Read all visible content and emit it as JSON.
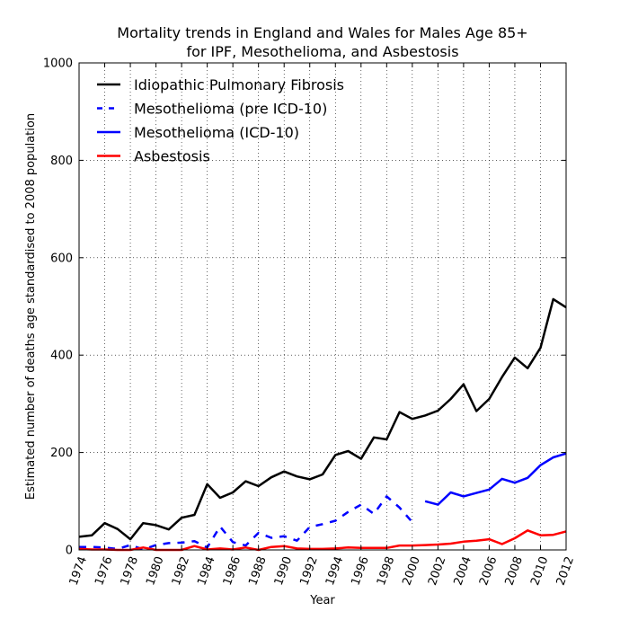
{
  "chart_data": {
    "type": "line",
    "title_line1": "Mortality trends in England and Wales for Males Age 85+",
    "title_line2": "for IPF, Mesothelioma, and Asbestosis",
    "xlabel": "Year",
    "ylabel": "Estimated number of deaths age standardised to 2008 population",
    "xlim": [
      1974,
      2012
    ],
    "ylim": [
      0,
      1000
    ],
    "xticks": [
      "1974",
      "1976",
      "1978",
      "1980",
      "1982",
      "1984",
      "1986",
      "1988",
      "1990",
      "1992",
      "1994",
      "1996",
      "1998",
      "2000",
      "2002",
      "2004",
      "2006",
      "2008",
      "2010",
      "2012"
    ],
    "yticks": [
      "0",
      "200",
      "400",
      "600",
      "800",
      "1000"
    ],
    "grid": true,
    "legend_position": "top-left",
    "series": [
      {
        "name": "Idiopathic Pulmonary Fibrosis",
        "color": "#000000",
        "style": "solid",
        "x": [
          1974,
          1975,
          1976,
          1977,
          1978,
          1979,
          1980,
          1981,
          1982,
          1983,
          1984,
          1985,
          1986,
          1987,
          1988,
          1989,
          1990,
          1991,
          1992,
          1993,
          1994,
          1995,
          1996,
          1997,
          1998,
          1999,
          2000,
          2001,
          2002,
          2003,
          2004,
          2005,
          2006,
          2007,
          2008,
          2009,
          2010,
          2011,
          2012
        ],
        "y": [
          27,
          30,
          55,
          43,
          22,
          55,
          51,
          42,
          66,
          72,
          135,
          107,
          118,
          141,
          131,
          149,
          161,
          151,
          145,
          155,
          195,
          203,
          187,
          231,
          227,
          283,
          269,
          276,
          286,
          310,
          340,
          285,
          310,
          355,
          395,
          373,
          415,
          515,
          498
        ]
      },
      {
        "name": "Mesothelioma (pre ICD-10)",
        "color": "#0000ff",
        "style": "dashed",
        "x": [
          1974,
          1975,
          1976,
          1977,
          1978,
          1979,
          1980,
          1981,
          1982,
          1983,
          1984,
          1985,
          1986,
          1987,
          1988,
          1989,
          1990,
          1991,
          1992,
          1993,
          1994,
          1995,
          1996,
          1997,
          1998,
          1999,
          2000
        ],
        "y": [
          6,
          6,
          5,
          2,
          10,
          1,
          10,
          14,
          15,
          18,
          5,
          48,
          16,
          9,
          35,
          25,
          28,
          19,
          47,
          53,
          60,
          78,
          93,
          74,
          110,
          87,
          57
        ]
      },
      {
        "name": "Mesothelioma (ICD-10)",
        "color": "#0000ff",
        "style": "solid",
        "x": [
          2001,
          2002,
          2003,
          2004,
          2005,
          2006,
          2007,
          2008,
          2009,
          2010,
          2011,
          2012
        ],
        "y": [
          100,
          93,
          118,
          110,
          117,
          124,
          146,
          138,
          148,
          174,
          190,
          198
        ]
      },
      {
        "name": "Asbestosis",
        "color": "#ff0000",
        "style": "solid",
        "x": [
          1974,
          1975,
          1976,
          1977,
          1978,
          1979,
          1980,
          1981,
          1982,
          1983,
          1984,
          1985,
          1986,
          1987,
          1988,
          1989,
          1990,
          1991,
          1992,
          1993,
          1994,
          1995,
          1996,
          1997,
          1998,
          1999,
          2000,
          2001,
          2002,
          2003,
          2004,
          2005,
          2006,
          2007,
          2008,
          2009,
          2010,
          2011,
          2012
        ],
        "y": [
          2,
          1,
          1,
          0,
          0,
          5,
          0,
          0,
          0,
          8,
          1,
          3,
          1,
          5,
          0,
          6,
          8,
          3,
          2,
          2,
          3,
          5,
          4,
          4,
          4,
          9,
          9,
          10,
          11,
          13,
          17,
          19,
          22,
          12,
          24,
          40,
          30,
          31,
          38
        ]
      }
    ]
  }
}
